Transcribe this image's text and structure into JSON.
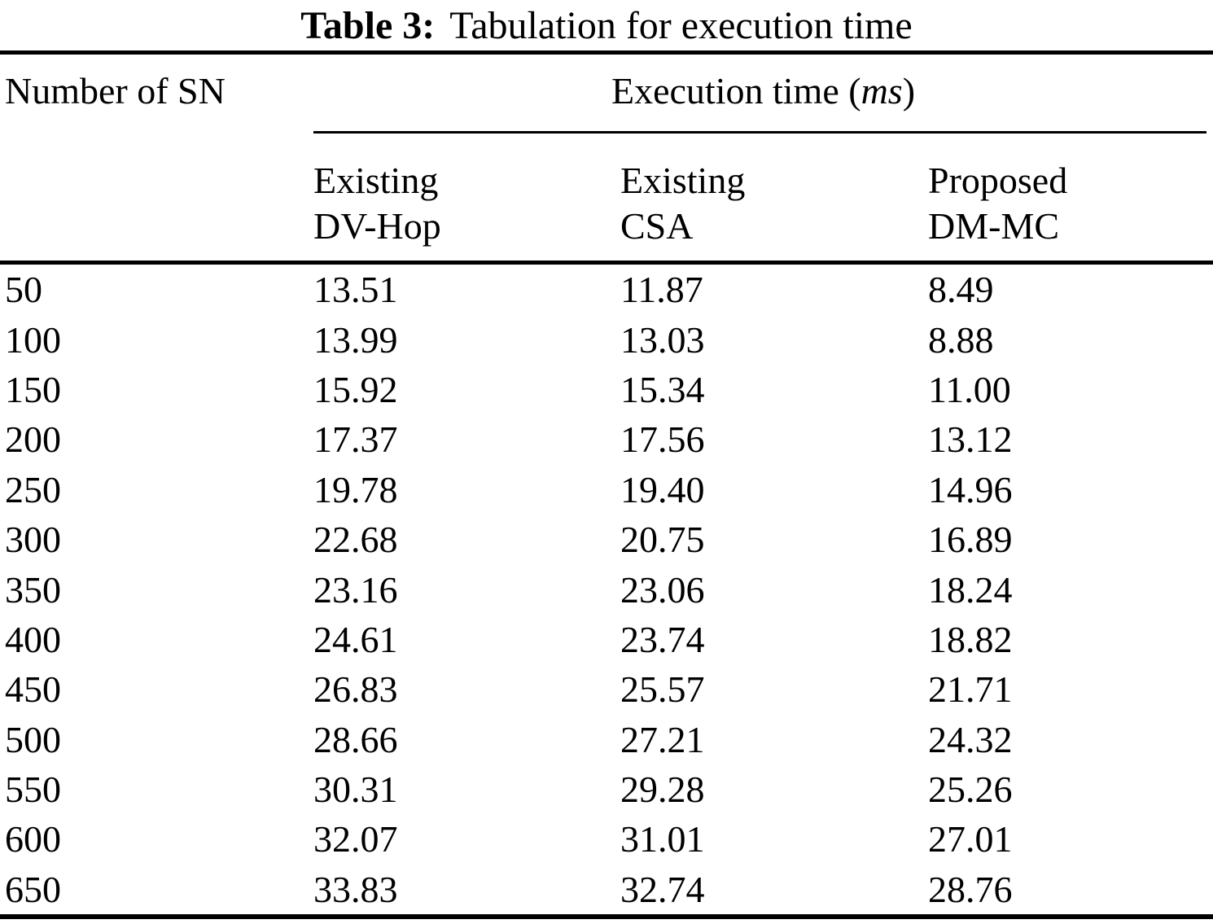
{
  "page": {
    "background": "#ffffff",
    "text_color": "#000000"
  },
  "table": {
    "title": {
      "label": "Table 3:",
      "caption": "Tabulation for execution time"
    },
    "header": {
      "row_label": "Number of SN",
      "group": {
        "prefix": "Execution time (",
        "unit": "ms",
        "suffix": ")"
      },
      "columns": [
        {
          "line1": "Existing",
          "line2": "DV-Hop"
        },
        {
          "line1": "Existing",
          "line2": "CSA"
        },
        {
          "line1": "Proposed",
          "line2": "DM-MC"
        }
      ]
    },
    "rows": [
      {
        "sn": "50",
        "dv_hop": "13.51",
        "csa": "11.87",
        "dm_mc": "8.49"
      },
      {
        "sn": "100",
        "dv_hop": "13.99",
        "csa": "13.03",
        "dm_mc": "8.88"
      },
      {
        "sn": "150",
        "dv_hop": "15.92",
        "csa": "15.34",
        "dm_mc": "11.00"
      },
      {
        "sn": "200",
        "dv_hop": "17.37",
        "csa": "17.56",
        "dm_mc": "13.12"
      },
      {
        "sn": "250",
        "dv_hop": "19.78",
        "csa": "19.40",
        "dm_mc": "14.96"
      },
      {
        "sn": "300",
        "dv_hop": "22.68",
        "csa": "20.75",
        "dm_mc": "16.89"
      },
      {
        "sn": "350",
        "dv_hop": "23.16",
        "csa": "23.06",
        "dm_mc": "18.24"
      },
      {
        "sn": "400",
        "dv_hop": "24.61",
        "csa": "23.74",
        "dm_mc": "18.82"
      },
      {
        "sn": "450",
        "dv_hop": "26.83",
        "csa": "25.57",
        "dm_mc": "21.71"
      },
      {
        "sn": "500",
        "dv_hop": "28.66",
        "csa": "27.21",
        "dm_mc": "24.32"
      },
      {
        "sn": "550",
        "dv_hop": "30.31",
        "csa": "29.28",
        "dm_mc": "25.26"
      },
      {
        "sn": "600",
        "dv_hop": "32.07",
        "csa": "31.01",
        "dm_mc": "27.01"
      },
      {
        "sn": "650",
        "dv_hop": "33.83",
        "csa": "32.74",
        "dm_mc": "28.76"
      }
    ]
  },
  "chart_data": {
    "type": "table",
    "title": "Table 3: Tabulation for execution time",
    "x_label": "Number of SN",
    "value_label": "Execution time (ms)",
    "categories": [
      50,
      100,
      150,
      200,
      250,
      300,
      350,
      400,
      450,
      500,
      550,
      600,
      650
    ],
    "series": [
      {
        "name": "Existing DV-Hop",
        "values": [
          13.51,
          13.99,
          15.92,
          17.37,
          19.78,
          22.68,
          23.16,
          24.61,
          26.83,
          28.66,
          30.31,
          32.07,
          33.83
        ]
      },
      {
        "name": "Existing CSA",
        "values": [
          11.87,
          13.03,
          15.34,
          17.56,
          19.4,
          20.75,
          23.06,
          23.74,
          25.57,
          27.21,
          29.28,
          31.01,
          32.74
        ]
      },
      {
        "name": "Proposed DM-MC",
        "values": [
          8.49,
          8.88,
          11.0,
          13.12,
          14.96,
          16.89,
          18.24,
          18.82,
          21.71,
          24.32,
          25.26,
          27.01,
          28.76
        ]
      }
    ]
  }
}
